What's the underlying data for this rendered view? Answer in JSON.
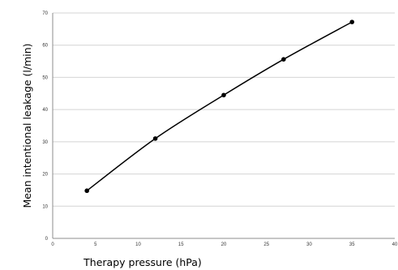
{
  "chart_data": {
    "type": "line",
    "title": "",
    "xlabel": "Therapy pressure (hPa)",
    "ylabel": "Mean intentional leakage (l/min)",
    "xlim": [
      0,
      40
    ],
    "ylim": [
      0,
      70
    ],
    "xticks": [
      0,
      5,
      10,
      15,
      20,
      25,
      30,
      35,
      40
    ],
    "yticks": [
      0,
      10,
      20,
      30,
      40,
      50,
      60,
      70
    ],
    "grid": "horizontal",
    "legend": "none",
    "series": [
      {
        "x": [
          4,
          12,
          20,
          27,
          35
        ],
        "y": [
          14.8,
          31,
          44.5,
          55.6,
          67.2
        ],
        "line_color": "#000000",
        "marker": "circle"
      }
    ]
  }
}
